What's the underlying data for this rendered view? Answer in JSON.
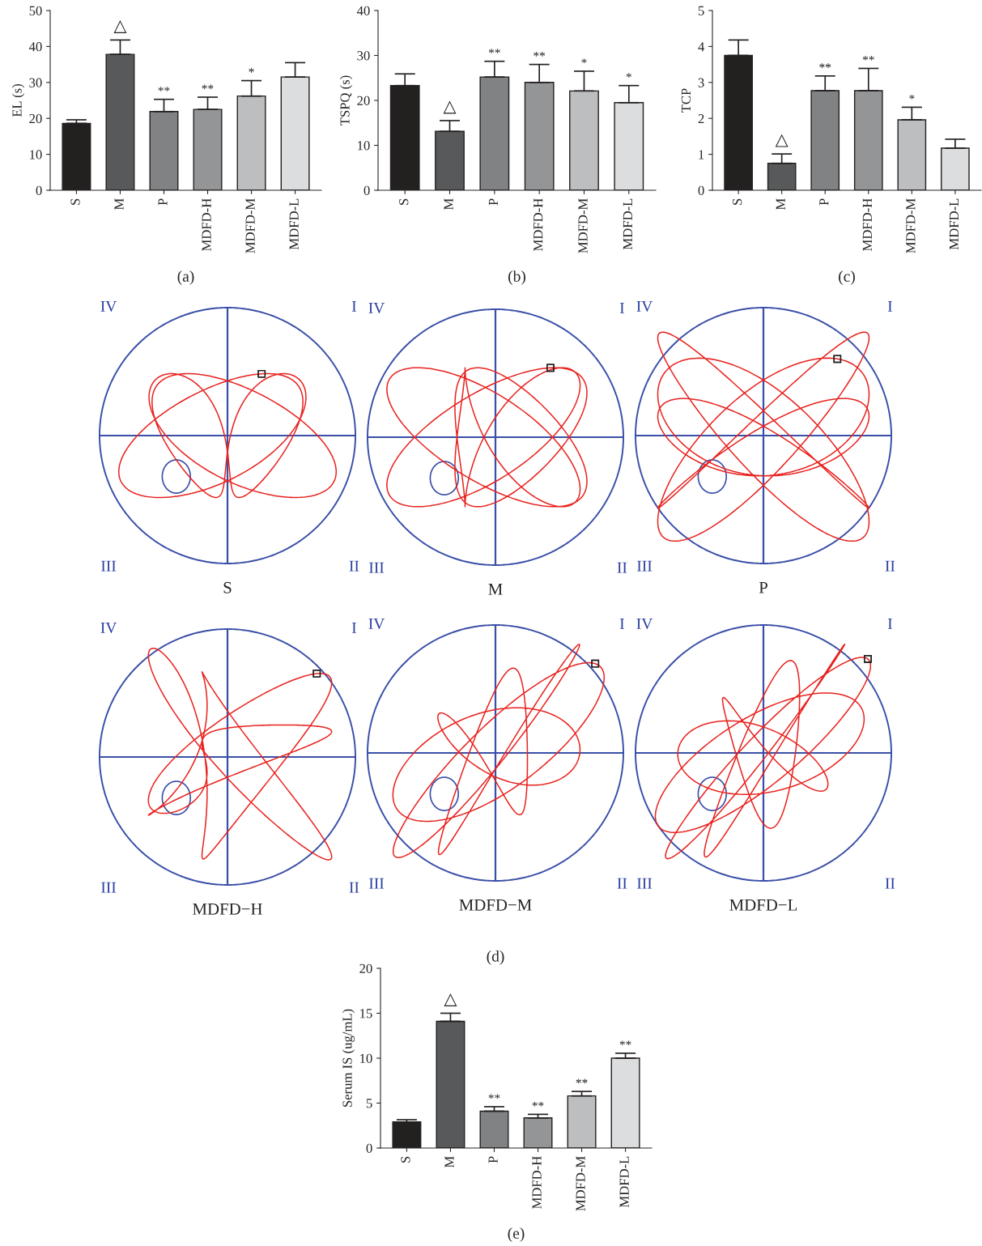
{
  "chart_data": [
    {
      "type": "bar",
      "ylabel": "EL (s)",
      "categories": [
        "S",
        "M",
        "P",
        "MDFD-H",
        "MDFD-M",
        "MDFD-L"
      ],
      "values": [
        18.6,
        37.8,
        21.9,
        22.5,
        26.2,
        31.5
      ],
      "errors": [
        [
          18.6,
          19.6
        ],
        [
          37.8,
          41.8
        ],
        [
          21.9,
          25.3
        ],
        [
          22.5,
          25.9
        ],
        [
          26.2,
          30.5
        ],
        [
          31.5,
          35.5
        ]
      ],
      "colors": [
        "#231f20",
        "#58595b",
        "#808285",
        "#939598",
        "#bcbec0",
        "#dcddde"
      ],
      "ylim": [
        0,
        50
      ],
      "yticks": [
        0,
        10,
        20,
        30,
        40,
        50
      ],
      "grid": false,
      "annotations": [
        {
          "text": "△",
          "x": "M",
          "y": 41.8
        },
        {
          "text": "**",
          "x": "P",
          "y": 25.3
        },
        {
          "text": "**",
          "x": "MDFD-H",
          "y": 25.9
        },
        {
          "text": "*",
          "x": "MDFD-M",
          "y": 30.5
        },
        "(a)"
      ]
    },
    {
      "type": "bar",
      "ylabel": "TSPQ (s)",
      "categories": [
        "S",
        "M",
        "P",
        "MDFD-H",
        "MDFD-M",
        "MDFD-L"
      ],
      "values": [
        23.3,
        13.1,
        25.2,
        24.0,
        22.1,
        19.5
      ],
      "errors": [
        [
          23.3,
          25.9
        ],
        [
          13.1,
          15.5
        ],
        [
          25.2,
          28.7
        ],
        [
          24.0,
          28.0
        ],
        [
          22.1,
          26.5
        ],
        [
          19.5,
          23.3
        ]
      ],
      "colors": [
        "#231f20",
        "#58595b",
        "#808285",
        "#939598",
        "#bcbec0",
        "#dcddde"
      ],
      "ylim": [
        0,
        40
      ],
      "yticks": [
        0,
        10,
        20,
        30,
        40
      ],
      "grid": false,
      "annotations": [
        {
          "text": "△",
          "x": "M",
          "y": 15.5
        },
        {
          "text": "**",
          "x": "P",
          "y": 28.7
        },
        {
          "text": "**",
          "x": "MDFD-H",
          "y": 28.0
        },
        {
          "text": "*",
          "x": "MDFD-M",
          "y": 26.5
        },
        {
          "text": "*",
          "x": "MDFD-L",
          "y": 23.3
        },
        "(b)"
      ]
    },
    {
      "type": "bar",
      "ylabel": "TCP",
      "categories": [
        "S",
        "M",
        "P",
        "MDFD-H",
        "MDFD-M",
        "MDFD-L"
      ],
      "values": [
        3.75,
        0.75,
        2.77,
        2.77,
        1.96,
        1.17
      ],
      "errors": [
        [
          3.75,
          4.18
        ],
        [
          0.75,
          1.01
        ],
        [
          2.77,
          3.18
        ],
        [
          2.77,
          3.39
        ],
        [
          1.96,
          2.31
        ],
        [
          1.17,
          1.42
        ]
      ],
      "colors": [
        "#231f20",
        "#58595b",
        "#808285",
        "#939598",
        "#bcbec0",
        "#dcddde"
      ],
      "ylim": [
        0,
        5
      ],
      "yticks": [
        0,
        1,
        2,
        3,
        4,
        5
      ],
      "grid": false,
      "annotations": [
        {
          "text": "△",
          "x": "M",
          "y": 1.01
        },
        {
          "text": "**",
          "x": "P",
          "y": 3.18
        },
        {
          "text": "**",
          "x": "MDFD-H",
          "y": 3.39
        },
        {
          "text": "*",
          "x": "MDFD-M",
          "y": 2.31
        },
        "(c)"
      ]
    },
    {
      "type": "other",
      "title": "S",
      "annotations": [
        "IV",
        "I",
        "III",
        "II"
      ]
    },
    {
      "type": "other",
      "title": "M",
      "annotations": [
        "IV",
        "I",
        "III",
        "II"
      ]
    },
    {
      "type": "other",
      "title": "P",
      "annotations": [
        "IV",
        "I",
        "III",
        "II"
      ]
    },
    {
      "type": "other",
      "title": "MDFD−H",
      "annotations": [
        "IV",
        "I",
        "III",
        "II"
      ]
    },
    {
      "type": "other",
      "title": "MDFD−M",
      "annotations": [
        "IV",
        "I",
        "III",
        "II",
        "(d)"
      ]
    },
    {
      "type": "other",
      "title": "MDFD−L",
      "annotations": [
        "IV",
        "I",
        "III",
        "II"
      ]
    },
    {
      "type": "bar",
      "ylabel": "Serum IS (ug/mL)",
      "categories": [
        "S",
        "M",
        "P",
        "MDFD-H",
        "MDFD-M",
        "MDFD-L"
      ],
      "values": [
        2.9,
        14.1,
        4.1,
        3.35,
        5.8,
        10.0
      ],
      "errors": [
        [
          2.9,
          3.15
        ],
        [
          14.1,
          15.0
        ],
        [
          4.1,
          4.6
        ],
        [
          3.35,
          3.75
        ],
        [
          5.8,
          6.3
        ],
        [
          10.0,
          10.55
        ]
      ],
      "colors": [
        "#231f20",
        "#58595b",
        "#808285",
        "#939598",
        "#bcbec0",
        "#dcddde"
      ],
      "ylim": [
        0,
        20
      ],
      "yticks": [
        0,
        5,
        10,
        15,
        20
      ],
      "grid": false,
      "annotations": [
        {
          "text": "△",
          "x": "M",
          "y": 15.0
        },
        {
          "text": "**",
          "x": "P",
          "y": 4.6
        },
        {
          "text": "**",
          "x": "MDFD-H",
          "y": 3.75
        },
        {
          "text": "**",
          "x": "MDFD-M",
          "y": 6.3
        },
        {
          "text": "**",
          "x": "MDFD-L",
          "y": 10.55
        },
        "(e)"
      ]
    }
  ]
}
